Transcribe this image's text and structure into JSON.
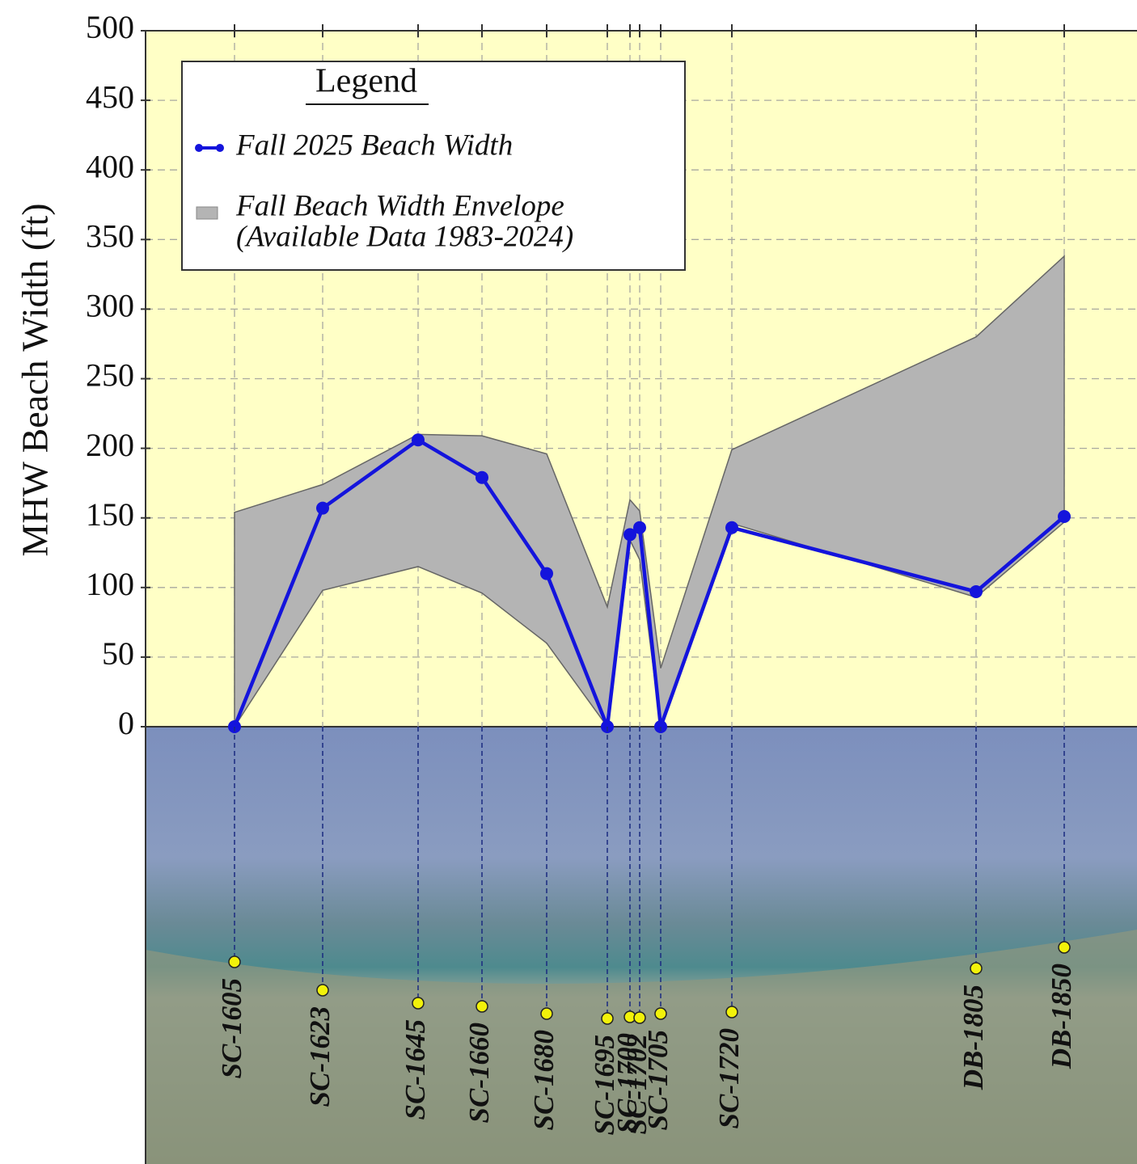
{
  "chart_data": {
    "type": "line",
    "ylabel": "MHW Beach Width (ft)",
    "categories": [
      "SC-1605",
      "SC-1623",
      "SC-1645",
      "SC-1660",
      "SC-1680",
      "SC-1695",
      "SC-1700",
      "SC-1702",
      "SC-1705",
      "SC-1720",
      "DB-1805",
      "DB-1850"
    ],
    "series": [
      {
        "name": "Fall 2025 Beach Width",
        "color": "#1414dc",
        "values": [
          0,
          157,
          206,
          179,
          110,
          0,
          138,
          143,
          0,
          143,
          97,
          151
        ]
      }
    ],
    "envelope": {
      "name": "Fall Beach Width Envelope",
      "note": "(Available Data 1983-2024)",
      "color": "#b4b4b4",
      "upper": [
        154,
        174,
        210,
        209,
        196,
        86,
        163,
        155,
        42,
        199,
        280,
        338
      ],
      "lower": [
        0,
        98,
        115,
        96,
        60,
        0,
        134,
        120,
        0,
        146,
        93,
        147
      ]
    },
    "ylim": [
      0,
      500
    ],
    "yticks": [
      0,
      50,
      100,
      150,
      200,
      250,
      300,
      350,
      400,
      450,
      500
    ],
    "grid": true,
    "legend_title": "Legend",
    "legend": "upper left"
  }
}
